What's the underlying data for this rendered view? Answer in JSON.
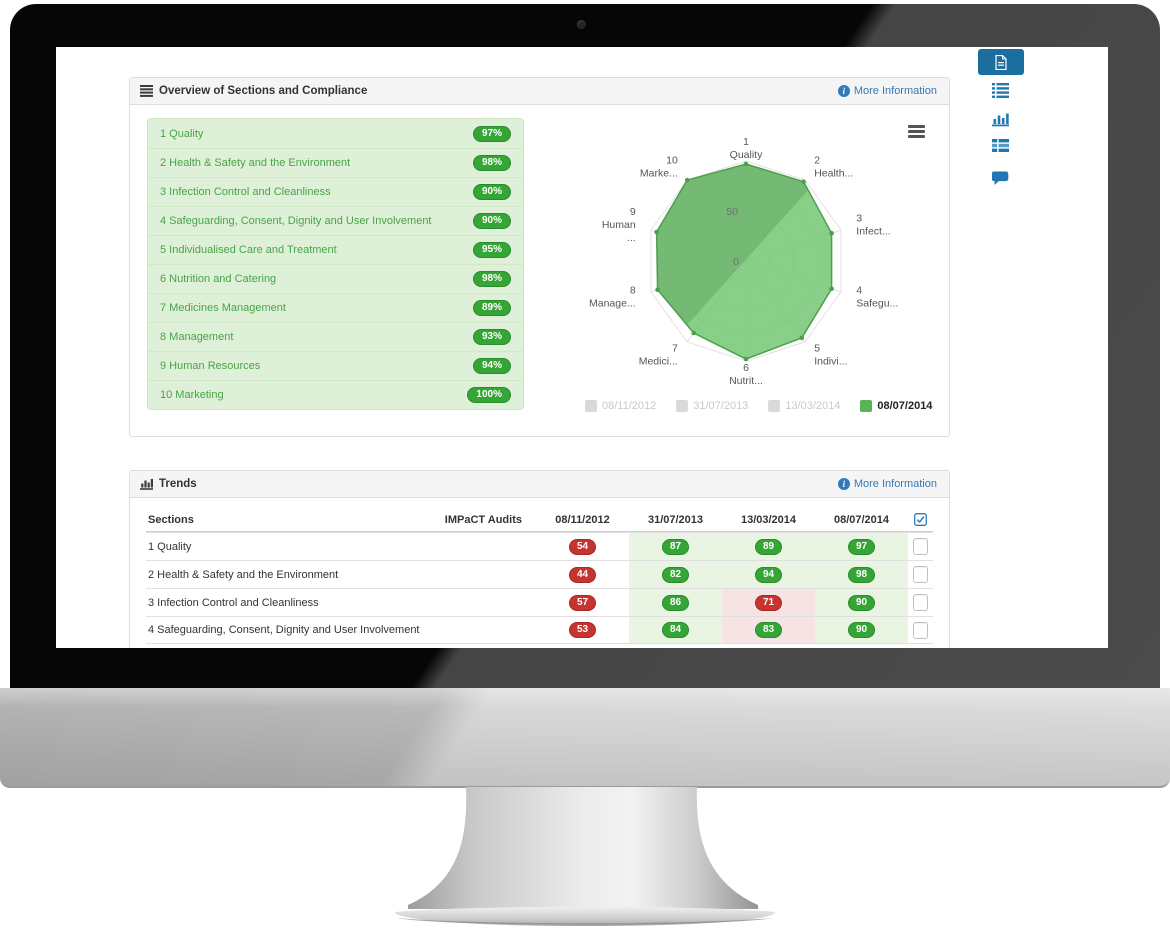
{
  "overview_panel": {
    "title": "Overview of Sections and Compliance",
    "icon": "list-icon",
    "more_info_label": "More Information",
    "sections": [
      {
        "label": "1 Quality",
        "score": "97%"
      },
      {
        "label": "2 Health & Safety and the Environment",
        "score": "98%"
      },
      {
        "label": "3 Infection Control and Cleanliness",
        "score": "90%"
      },
      {
        "label": "4 Safeguarding, Consent, Dignity and User Involvement",
        "score": "90%"
      },
      {
        "label": "5 Individualised Care and Treatment",
        "score": "95%"
      },
      {
        "label": "6 Nutrition and Catering",
        "score": "98%"
      },
      {
        "label": "7 Medicines Management",
        "score": "89%"
      },
      {
        "label": "8 Management",
        "score": "93%"
      },
      {
        "label": "9 Human Resources",
        "score": "94%"
      },
      {
        "label": "10 Marketing",
        "score": "100%"
      }
    ]
  },
  "chart_data": {
    "type": "radar",
    "categories": [
      "Quality",
      "Health & Safety and the Environment",
      "Infection Control and Cleanliness",
      "Safeguarding, Consent, Dignity and User Involvement",
      "Individualised Care and Treatment",
      "Nutrition and Catering",
      "Medicines Management",
      "Management",
      "Human Resources",
      "Marketing"
    ],
    "axis_labels": [
      [
        "1",
        "Quality"
      ],
      [
        "2",
        "Health..."
      ],
      [
        "3",
        "Infect..."
      ],
      [
        "4",
        "Safegu..."
      ],
      [
        "5",
        "Indivi..."
      ],
      [
        "6",
        "Nutrit..."
      ],
      [
        "7",
        "Medici..."
      ],
      [
        "8",
        "Manage..."
      ],
      [
        "9",
        "Human",
        "..."
      ],
      [
        "10",
        "Marke..."
      ]
    ],
    "series": [
      {
        "name": "08/11/2012",
        "visible": false
      },
      {
        "name": "31/07/2013",
        "visible": false
      },
      {
        "name": "13/03/2014",
        "visible": false
      },
      {
        "name": "08/07/2014",
        "visible": true,
        "values": [
          97,
          98,
          90,
          90,
          95,
          98,
          89,
          93,
          94,
          100
        ]
      }
    ],
    "scale_labels": [
      "50",
      "0"
    ],
    "ylim": [
      0,
      100
    ],
    "legend_position": "bottom",
    "colors": {
      "fill_dark": "#61b161",
      "fill_light": "#77c877",
      "stroke": "#4f9e4f",
      "legend_active": "#55b555",
      "legend_disabled": "#d9d9d9"
    }
  },
  "trends_panel": {
    "title": "Trends",
    "icon": "bar-chart-icon",
    "more_info_label": "More Information",
    "columns": {
      "sections": "Sections",
      "audits": "IMPaCT Audits",
      "dates": [
        "08/11/2012",
        "31/07/2013",
        "13/03/2014",
        "08/07/2014"
      ],
      "select_icon": "check-square-icon"
    },
    "rows": [
      {
        "label": "1 Quality",
        "cells": [
          {
            "v": "54",
            "badge": "red",
            "bg": "plain"
          },
          {
            "v": "87",
            "badge": "green",
            "bg": "green"
          },
          {
            "v": "89",
            "badge": "green",
            "bg": "green"
          },
          {
            "v": "97",
            "badge": "green",
            "bg": "green"
          }
        ]
      },
      {
        "label": "2 Health & Safety and the Environment",
        "cells": [
          {
            "v": "44",
            "badge": "red",
            "bg": "plain"
          },
          {
            "v": "82",
            "badge": "green",
            "bg": "green"
          },
          {
            "v": "94",
            "badge": "green",
            "bg": "green"
          },
          {
            "v": "98",
            "badge": "green",
            "bg": "green"
          }
        ]
      },
      {
        "label": "3 Infection Control and Cleanliness",
        "cells": [
          {
            "v": "57",
            "badge": "red",
            "bg": "plain"
          },
          {
            "v": "86",
            "badge": "green",
            "bg": "green"
          },
          {
            "v": "71",
            "badge": "red",
            "bg": "pink"
          },
          {
            "v": "90",
            "badge": "green",
            "bg": "green"
          }
        ]
      },
      {
        "label": "4 Safeguarding, Consent, Dignity and User Involvement",
        "cells": [
          {
            "v": "53",
            "badge": "red",
            "bg": "plain"
          },
          {
            "v": "84",
            "badge": "green",
            "bg": "green"
          },
          {
            "v": "83",
            "badge": "green",
            "bg": "pink"
          },
          {
            "v": "90",
            "badge": "green",
            "bg": "green"
          }
        ]
      }
    ]
  },
  "sidebar": {
    "items": [
      "document",
      "list",
      "chart",
      "table",
      "comment"
    ],
    "active": "document",
    "accent_color": "#2077b2",
    "active_bg": "#1a6f9e"
  }
}
